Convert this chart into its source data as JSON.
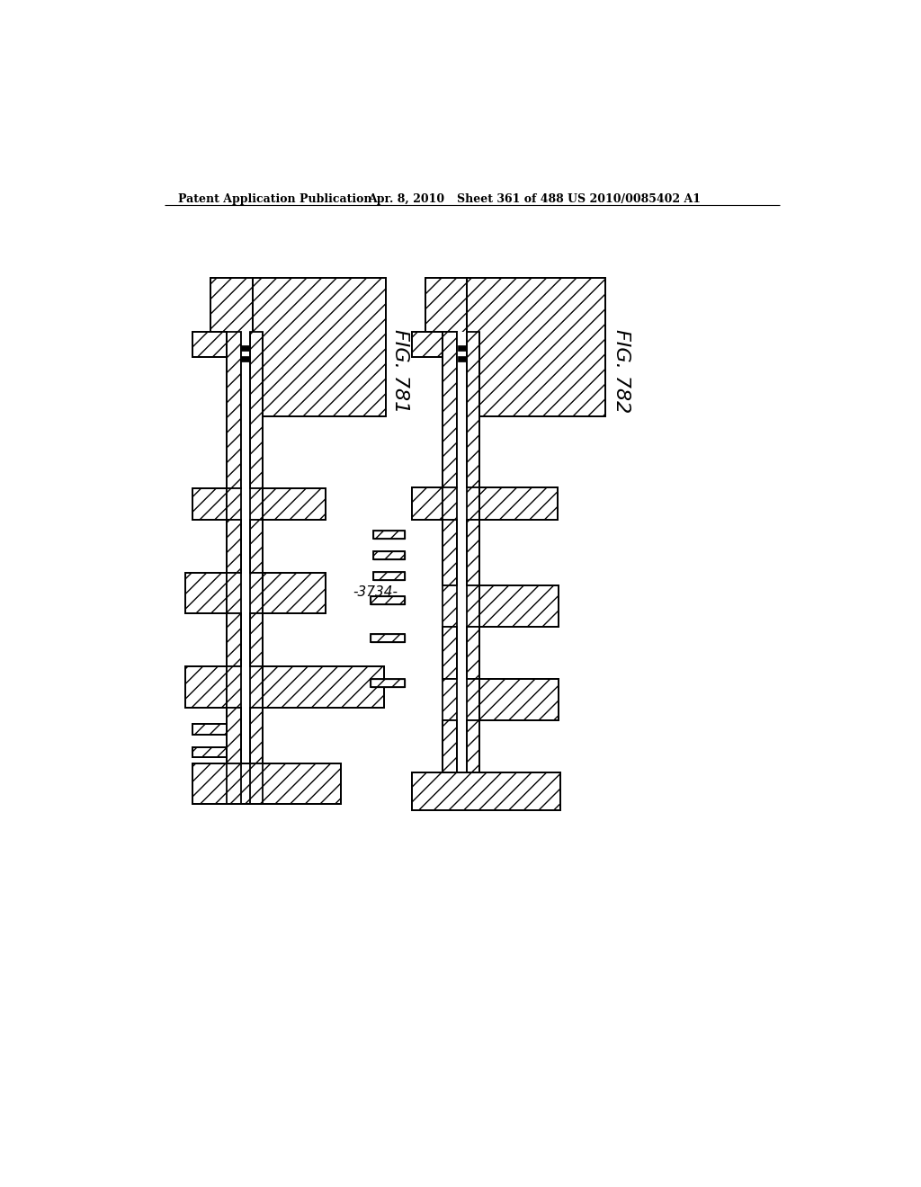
{
  "title_text": "Patent Application Publication",
  "title_date": "Apr. 8, 2010",
  "title_sheet": "Sheet 361 of 488",
  "title_patent": "US 2010/0085402 A1",
  "fig1_label": "FIG. 781",
  "fig2_label": "FIG. 782",
  "label_3734": "-3734-",
  "bg_color": "#ffffff",
  "lw": 1.3
}
